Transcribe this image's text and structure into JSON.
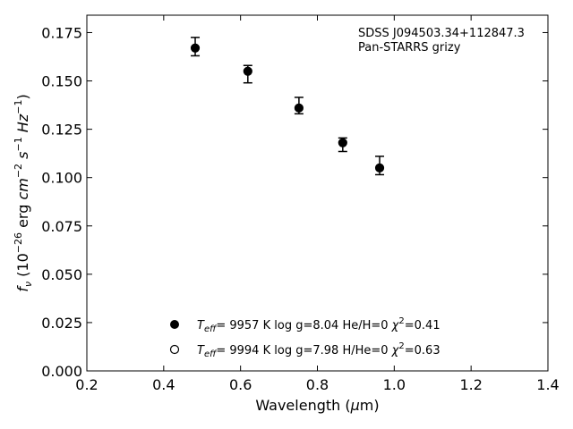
{
  "chart_data": {
    "type": "scatter",
    "title": "",
    "xlabel": "Wavelength (μm)",
    "ylabel": "f_ν (10^-26 erg cm^-2 s^-1 Hz^-1)",
    "xlim": [
      0.2,
      1.4
    ],
    "ylim": [
      0.0,
      0.184
    ],
    "xticks": [
      0.2,
      0.4,
      0.6,
      0.8,
      1.0,
      1.2,
      1.4
    ],
    "xtick_labels": [
      "0.2",
      "0.4",
      "0.6",
      "0.8",
      "1.0",
      "1.2",
      "1.4"
    ],
    "yticks": [
      0.0,
      0.025,
      0.05,
      0.075,
      0.1,
      0.125,
      0.15,
      0.175
    ],
    "ytick_labels": [
      "0.000",
      "0.025",
      "0.050",
      "0.075",
      "0.100",
      "0.125",
      "0.150",
      "0.175"
    ],
    "grid": false,
    "annotation": [
      "SDSS J094503.34+112847.3",
      "Pan-STARRS grizy"
    ],
    "series": [
      {
        "marker": "filled-circle",
        "color": "#000000",
        "x": [
          0.482,
          0.619,
          0.752,
          0.866,
          0.962
        ],
        "y": [
          0.167,
          0.155,
          0.136,
          0.118,
          0.105
        ],
        "err_lo": [
          0.004,
          0.006,
          0.003,
          0.0045,
          0.0035
        ],
        "err_hi": [
          0.0055,
          0.003,
          0.0055,
          0.0025,
          0.006
        ]
      },
      {
        "marker": "open-circle",
        "color": "#000000",
        "x": [],
        "y": []
      }
    ],
    "legend": {
      "placement": "lower-center",
      "entries": [
        {
          "teff_value": "9957 K",
          "logg": "log g=8.04",
          "comp": "He/H=0",
          "chi2": "=0.41",
          "marker": "filled-circle"
        },
        {
          "teff_value": "9994 K",
          "logg": "log g=7.98",
          "comp": "H/He=0",
          "chi2": "=0.63",
          "marker": "open-circle"
        }
      ]
    }
  }
}
